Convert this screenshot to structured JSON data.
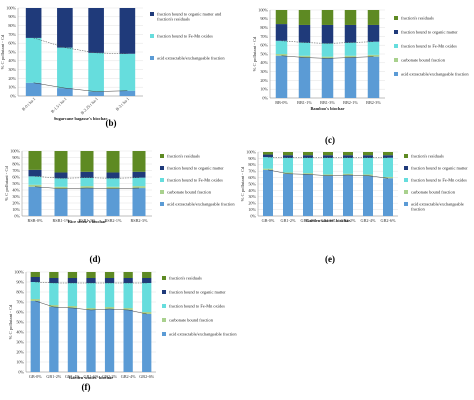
{
  "colors": {
    "acid": "#5b9bd5",
    "carbonate": "#a9d18e",
    "fe_mn": "#66dddd",
    "organic": "#1f3a7a",
    "residual": "#5e8a23",
    "organic_plus_residual": "#1f3a7a",
    "line": "#444444"
  },
  "chart_data": [
    {
      "type": "bar",
      "stacked": true,
      "panel_label": "(b)",
      "xlabel": "Sugarcane bagasse's biochar",
      "ylabel": "% C pollutant - Cd",
      "ylim": [
        0,
        100
      ],
      "yticks": [
        "0%",
        "10%",
        "20%",
        "30%",
        "40%",
        "50%",
        "60%",
        "70%",
        "80%",
        "90%",
        "100%"
      ],
      "categories": [
        "B-0 t ha-1",
        "B-1.5 t ha-1",
        "B-2.25 t ha-1",
        "B-3 t ha-1"
      ],
      "series": [
        {
          "name": "acid extractable/exchangeable fraction",
          "key": "acid",
          "values": [
            15,
            9,
            5,
            6
          ]
        },
        {
          "name": "fraction bound to Fe-Mn oxides",
          "key": "fe_mn",
          "values": [
            51,
            46,
            44,
            42
          ]
        },
        {
          "name": "fraction bound to organic matter and fraction's residuals",
          "key": "organic_plus_residual",
          "values": [
            34,
            45,
            51,
            52
          ]
        }
      ],
      "legend": [
        "organic_plus_residual",
        "fe_mn",
        "acid"
      ],
      "legend_position": "right"
    },
    {
      "type": "bar",
      "stacked": true,
      "panel_label": "(c)",
      "xlabel": "Bamboo's biochar",
      "ylabel": "% C pollutant - Cd",
      "ylim": [
        0,
        100
      ],
      "yticks": [
        "0%",
        "10%",
        "20%",
        "30%",
        "40%",
        "50%",
        "60%",
        "70%",
        "80%",
        "90%",
        "100%"
      ],
      "categories": [
        "BB-0%",
        "BB1-1%",
        "BB1-3%",
        "BB2-1%",
        "BB2-3%"
      ],
      "series": [
        {
          "name": "acid extractable/exchangeable fraction",
          "key": "acid",
          "values": [
            48,
            46,
            45,
            46,
            47
          ]
        },
        {
          "name": "carbonate bound fraction",
          "key": "carbonate",
          "values": [
            2,
            2,
            2,
            2,
            2
          ]
        },
        {
          "name": "fraction bound to Fe-Mn oxides",
          "key": "fe_mn",
          "values": [
            15,
            15,
            15,
            15,
            15
          ]
        },
        {
          "name": "fraction bound to organic matter",
          "key": "organic",
          "values": [
            19,
            20,
            21,
            20,
            19
          ]
        },
        {
          "name": "fraction's residuals",
          "key": "residual",
          "values": [
            16,
            17,
            17,
            17,
            17
          ]
        }
      ],
      "legend": [
        "residual",
        "organic",
        "fe_mn",
        "carbonate",
        "acid"
      ],
      "legend_position": "right"
    },
    {
      "type": "bar",
      "stacked": true,
      "panel_label": "(d)",
      "xlabel": "Rice straw's biochar",
      "ylabel": "% C pollutant - Cd",
      "ylim": [
        0,
        100
      ],
      "yticks": [
        "0%",
        "10%",
        "20%",
        "30%",
        "40%",
        "50%",
        "60%",
        "70%",
        "80%",
        "90%",
        "100%"
      ],
      "categories": [
        "RSB-0%",
        "RSB1-1%",
        "RSB1-3%",
        "RSB2-1%",
        "RSB2-3%"
      ],
      "series": [
        {
          "name": "acid extractable/exchangeable fraction",
          "key": "acid",
          "values": [
            45,
            42,
            43,
            42,
            43
          ]
        },
        {
          "name": "carbonate bound fraction",
          "key": "carbonate",
          "values": [
            3,
            3,
            3,
            3,
            3
          ]
        },
        {
          "name": "fraction bound to Fe-Mn oxides",
          "key": "fe_mn",
          "values": [
            13,
            13,
            13,
            13,
            13
          ]
        },
        {
          "name": "fraction bound to organic matter",
          "key": "organic",
          "values": [
            10,
            9,
            9,
            9,
            9
          ]
        },
        {
          "name": "fraction's residuals",
          "key": "residual",
          "values": [
            29,
            33,
            32,
            33,
            32
          ]
        }
      ],
      "legend": [
        "residual",
        "organic",
        "fe_mn",
        "carbonate",
        "acid"
      ],
      "legend_position": "right"
    },
    {
      "type": "bar",
      "stacked": true,
      "panel_label": "(e)",
      "xlabel": "Garden wastes' biochar",
      "ylabel": "% C pollutant - Cd",
      "ylim": [
        0,
        100
      ],
      "yticks": [
        "0%",
        "10%",
        "20%",
        "30%",
        "40%",
        "50%",
        "60%",
        "70%",
        "80%",
        "90%",
        "100%"
      ],
      "categories": [
        "GB-0%",
        "GB1-2%",
        "GB1-4%",
        "GB1-6%",
        "GB2-2%",
        "GB2-4%",
        "GB2-6%"
      ],
      "series": [
        {
          "name": "acid extractable/exchangeable fraction",
          "key": "acid",
          "values": [
            72,
            66,
            65,
            63,
            64,
            63,
            59
          ]
        },
        {
          "name": "carbonate bound fraction",
          "key": "carbonate",
          "values": [
            2,
            2,
            2,
            2,
            2,
            2,
            2
          ]
        },
        {
          "name": "fraction bound to Fe-Mn oxides",
          "key": "fe_mn",
          "values": [
            18,
            23,
            24,
            26,
            25,
            26,
            30
          ]
        },
        {
          "name": "fraction bound to organic matter",
          "key": "organic",
          "values": [
            4,
            4,
            4,
            4,
            4,
            4,
            4
          ]
        },
        {
          "name": "fraction's residuals",
          "key": "residual",
          "values": [
            4,
            5,
            5,
            5,
            5,
            5,
            5
          ]
        }
      ],
      "legend": [
        "residual",
        "organic",
        "fe_mn",
        "carbonate",
        "acid"
      ],
      "legend_position": "right"
    },
    {
      "type": "bar",
      "stacked": true,
      "panel_label": "(f)",
      "xlabel": "Garden wastes' biochar",
      "ylabel": "% C pollutant - Cd",
      "ylim": [
        0,
        100
      ],
      "yticks": [
        "0%",
        "10%",
        "20%",
        "30%",
        "40%",
        "50%",
        "60%",
        "70%",
        "80%",
        "90%",
        "100%"
      ],
      "categories": [
        "GB-0%",
        "GB1-2%",
        "GB1-4%",
        "GB1-6%",
        "GB2-2%",
        "GB2-4%",
        "GB2-6%"
      ],
      "series": [
        {
          "name": "acid extractable/exchangeable fraction",
          "key": "acid",
          "values": [
            71,
            65,
            64,
            62,
            63,
            62,
            58
          ]
        },
        {
          "name": "carbonate bound fraction",
          "key": "carbonate",
          "values": [
            2,
            2,
            2,
            2,
            2,
            2,
            2
          ]
        },
        {
          "name": "fraction bound to Fe-Mn oxides",
          "key": "fe_mn",
          "values": [
            17,
            22,
            23,
            25,
            24,
            25,
            29
          ]
        },
        {
          "name": "fraction bound to organic matter",
          "key": "organic",
          "values": [
            5,
            5,
            5,
            5,
            5,
            5,
            5
          ]
        },
        {
          "name": "fraction's residuals",
          "key": "residual",
          "values": [
            5,
            6,
            6,
            6,
            6,
            6,
            6
          ]
        }
      ],
      "legend": [
        "residual",
        "organic",
        "fe_mn",
        "carbonate",
        "acid"
      ],
      "legend_position": "right"
    }
  ]
}
